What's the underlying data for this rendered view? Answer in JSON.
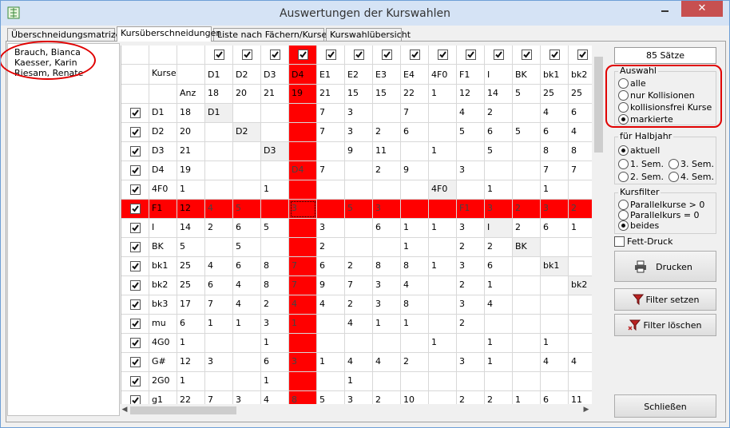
{
  "window": {
    "title": "Auswertungen der Kurswahlen"
  },
  "tabs": [
    "Überschneidungsmatrizen",
    "Kursüberschneidungen",
    "Liste nach Fächern/Kursen",
    "Kurswahlübersicht"
  ],
  "students": [
    "Brauch, Bianca",
    "Kaesser, Karin",
    "Riesam, Renate"
  ],
  "grid": {
    "header_kurse": "Kurse",
    "header_anz": "Anz",
    "highlight_column": "D4",
    "highlight_row": "F1",
    "columns": [
      {
        "name": "D1",
        "count": 18
      },
      {
        "name": "D2",
        "count": 20
      },
      {
        "name": "D3",
        "count": 21
      },
      {
        "name": "D4",
        "count": 19
      },
      {
        "name": "E1",
        "count": 21
      },
      {
        "name": "E2",
        "count": 15
      },
      {
        "name": "E3",
        "count": 15
      },
      {
        "name": "E4",
        "count": 22
      },
      {
        "name": "4F0",
        "count": 1
      },
      {
        "name": "F1",
        "count": 12
      },
      {
        "name": "I",
        "count": 14
      },
      {
        "name": "BK",
        "count": 5
      },
      {
        "name": "bk1",
        "count": 25
      },
      {
        "name": "bk2",
        "count": 25
      }
    ],
    "rows": [
      {
        "name": "D1",
        "count": 18,
        "cells": [
          "D1",
          null,
          null,
          null,
          7,
          3,
          null,
          7,
          null,
          4,
          2,
          null,
          4,
          6
        ]
      },
      {
        "name": "D2",
        "count": 20,
        "cells": [
          null,
          "D2",
          null,
          null,
          7,
          3,
          2,
          6,
          null,
          5,
          6,
          5,
          6,
          4
        ]
      },
      {
        "name": "D3",
        "count": 21,
        "cells": [
          null,
          null,
          "D3",
          null,
          null,
          9,
          11,
          null,
          1,
          null,
          5,
          null,
          8,
          8
        ]
      },
      {
        "name": "D4",
        "count": 19,
        "cells": [
          null,
          null,
          null,
          "D4",
          7,
          null,
          2,
          9,
          null,
          3,
          null,
          null,
          7,
          7
        ]
      },
      {
        "name": "4F0",
        "count": 1,
        "cells": [
          null,
          null,
          1,
          null,
          null,
          null,
          null,
          null,
          "4F0",
          null,
          1,
          null,
          1,
          null
        ]
      },
      {
        "name": "F1",
        "count": 12,
        "cells": [
          4,
          5,
          null,
          3,
          null,
          5,
          3,
          null,
          null,
          "F1",
          3,
          2,
          3,
          2
        ]
      },
      {
        "name": "I",
        "count": 14,
        "cells": [
          2,
          6,
          5,
          null,
          3,
          null,
          6,
          1,
          1,
          3,
          "I",
          2,
          6,
          1
        ]
      },
      {
        "name": "BK",
        "count": 5,
        "cells": [
          null,
          5,
          null,
          null,
          2,
          null,
          null,
          1,
          null,
          2,
          2,
          "BK",
          null,
          null
        ]
      },
      {
        "name": "bk1",
        "count": 25,
        "cells": [
          4,
          6,
          8,
          7,
          6,
          2,
          8,
          8,
          1,
          3,
          6,
          null,
          "bk1",
          null
        ]
      },
      {
        "name": "bk2",
        "count": 25,
        "cells": [
          6,
          4,
          8,
          7,
          9,
          7,
          3,
          4,
          null,
          2,
          1,
          null,
          null,
          "bk2"
        ]
      },
      {
        "name": "bk3",
        "count": 17,
        "cells": [
          7,
          4,
          2,
          4,
          4,
          2,
          3,
          8,
          null,
          3,
          4,
          null,
          null,
          null
        ]
      },
      {
        "name": "mu",
        "count": 6,
        "cells": [
          1,
          1,
          3,
          1,
          null,
          4,
          1,
          1,
          null,
          2,
          null,
          null,
          null,
          null
        ]
      },
      {
        "name": "4G0",
        "count": 1,
        "cells": [
          null,
          null,
          1,
          null,
          null,
          null,
          null,
          null,
          1,
          null,
          1,
          null,
          1,
          null
        ]
      },
      {
        "name": "G#",
        "count": 12,
        "cells": [
          3,
          null,
          6,
          3,
          1,
          4,
          4,
          2,
          null,
          3,
          1,
          null,
          4,
          4
        ]
      },
      {
        "name": "2G0",
        "count": 1,
        "cells": [
          null,
          null,
          1,
          null,
          null,
          1,
          null,
          null,
          null,
          null,
          null,
          null,
          null,
          null
        ]
      },
      {
        "name": "g1",
        "count": 22,
        "cells": [
          7,
          3,
          4,
          8,
          5,
          3,
          2,
          10,
          null,
          2,
          2,
          1,
          6,
          11
        ]
      }
    ]
  },
  "status": "85 Sätze",
  "auswahl": {
    "title": "Auswahl",
    "options": [
      "alle",
      "nur Kollisionen",
      "kollisionsfrei Kurse",
      "markierte"
    ],
    "selected": "markierte"
  },
  "halbjahr": {
    "title": "für Halbjahr",
    "options": [
      "aktuell",
      "1. Sem.",
      "3. Sem.",
      "2. Sem.",
      "4. Sem."
    ],
    "selected": "aktuell"
  },
  "kursfilter": {
    "title": "Kursfilter",
    "options": [
      "Parallelkurse > 0",
      "Parallelkurs = 0",
      "beides"
    ],
    "selected": "beides"
  },
  "fett_druck": "Fett-Druck",
  "buttons": {
    "drucken": "Drucken",
    "filter_setzen": "Filter setzen",
    "filter_loeschen": "Filter löschen",
    "schliessen": "Schließen"
  }
}
